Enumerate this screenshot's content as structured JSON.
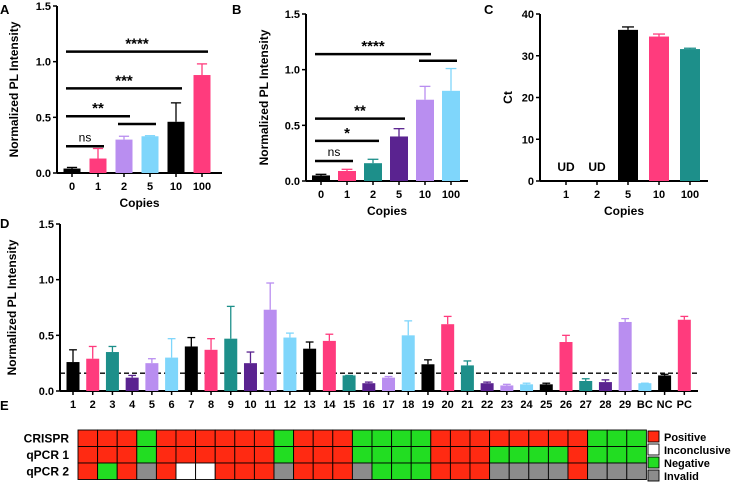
{
  "colors": {
    "black": "#000000",
    "pink": "#ff3b7d",
    "purple": "#b98ef0",
    "lightblue": "#7fd6fb",
    "teal": "#1d8f8a",
    "darkpurple": "#5a2390",
    "positive": "#ff2a12",
    "negative": "#22dd22",
    "inconclusive": "#ffffff",
    "invalid": "#8c8c8c"
  },
  "chart_data": [
    {
      "panel": "A",
      "type": "bar",
      "title": "",
      "xlabel": "Copies",
      "ylabel": "Normalized PL Intensity",
      "ylim": [
        0,
        1.5
      ],
      "yticks": [
        "0.0",
        "0.5",
        "1.0",
        "1.5"
      ],
      "categories": [
        "0",
        "1",
        "2",
        "5",
        "10",
        "100"
      ],
      "values": [
        0.04,
        0.13,
        0.3,
        0.33,
        0.46,
        0.88
      ],
      "errors": [
        0.01,
        0.09,
        0.03,
        0.005,
        0.17,
        0.1
      ],
      "colors": [
        "black",
        "pink",
        "purple",
        "lightblue",
        "black",
        "pink"
      ],
      "annotations": [
        {
          "from": 0,
          "to": 1,
          "y": 0.24,
          "text": "ns",
          "style": "sigs"
        },
        {
          "from": 0,
          "to": 2,
          "y": 0.51,
          "text": "**",
          "style": "sig"
        },
        {
          "from": 2,
          "to": 3,
          "y": 0.44,
          "text": "",
          "style": "sig"
        },
        {
          "from": 0,
          "to": 4,
          "y": 0.76,
          "text": "***",
          "style": "sig"
        },
        {
          "from": 0,
          "to": 5,
          "y": 1.09,
          "text": "****",
          "style": "sig"
        }
      ]
    },
    {
      "panel": "B",
      "type": "bar",
      "title": "",
      "xlabel": "Copies",
      "ylabel": "Normalized PL Intensity",
      "ylim": [
        0,
        1.5
      ],
      "yticks": [
        "0.0",
        "0.5",
        "1.0",
        "1.5"
      ],
      "categories": [
        "0",
        "1",
        "2",
        "5",
        "10",
        "100"
      ],
      "values": [
        0.05,
        0.09,
        0.16,
        0.4,
        0.73,
        0.81
      ],
      "errors": [
        0.01,
        0.015,
        0.035,
        0.07,
        0.12,
        0.2
      ],
      "colors": [
        "black",
        "pink",
        "teal",
        "darkpurple",
        "purple",
        "lightblue"
      ],
      "annotations": [
        {
          "from": 0,
          "to": 1,
          "y": 0.18,
          "text": "ns",
          "style": "sigs"
        },
        {
          "from": 0,
          "to": 2,
          "y": 0.36,
          "text": "*",
          "style": "sig"
        },
        {
          "from": 0,
          "to": 3,
          "y": 0.56,
          "text": "**",
          "style": "sig"
        },
        {
          "from": 4,
          "to": 5,
          "y": 1.08,
          "text": "",
          "style": "sig"
        },
        {
          "from": 0,
          "to": 4,
          "y": 1.14,
          "text": "****",
          "style": "sig"
        }
      ]
    },
    {
      "panel": "C",
      "type": "bar",
      "title": "",
      "xlabel": "Copies",
      "ylabel": "Ct",
      "ylim": [
        0,
        40
      ],
      "yticks": [
        "0",
        "10",
        "20",
        "30",
        "40"
      ],
      "categories": [
        "1",
        "2",
        "5",
        "10",
        "100"
      ],
      "values": [
        0,
        0,
        36.2,
        34.6,
        31.6
      ],
      "errors": [
        0,
        0,
        0.7,
        0.6,
        0.2
      ],
      "colors": [
        "black",
        "black",
        "black",
        "pink",
        "teal"
      ],
      "labels": [
        "UD",
        "UD",
        "",
        "",
        ""
      ]
    },
    {
      "panel": "D",
      "type": "bar",
      "title": "",
      "xlabel": "",
      "ylabel": "Normalized PL Intensity",
      "ylim": [
        0,
        1.5
      ],
      "yticks": [
        "0.0",
        "0.5",
        "1.0",
        "1.5"
      ],
      "threshold": 0.16,
      "categories": [
        "1",
        "2",
        "3",
        "4",
        "5",
        "6",
        "7",
        "8",
        "9",
        "10",
        "11",
        "12",
        "13",
        "14",
        "15",
        "16",
        "17",
        "18",
        "19",
        "20",
        "21",
        "22",
        "23",
        "24",
        "25",
        "26",
        "27",
        "28",
        "29",
        "BC",
        "NC",
        "PC"
      ],
      "values": [
        0.26,
        0.29,
        0.35,
        0.12,
        0.25,
        0.3,
        0.4,
        0.37,
        0.47,
        0.25,
        0.73,
        0.48,
        0.38,
        0.45,
        0.14,
        0.07,
        0.12,
        0.5,
        0.24,
        0.6,
        0.23,
        0.07,
        0.05,
        0.06,
        0.06,
        0.44,
        0.09,
        0.08,
        0.62,
        0.07,
        0.14,
        0.64
      ],
      "errors": [
        0.11,
        0.11,
        0.05,
        0.02,
        0.04,
        0.17,
        0.08,
        0.1,
        0.29,
        0.1,
        0.24,
        0.04,
        0.06,
        0.06,
        0.0,
        0.01,
        0.01,
        0.13,
        0.04,
        0.07,
        0.04,
        0.01,
        0.01,
        0.01,
        0.01,
        0.06,
        0.02,
        0.02,
        0.03,
        0.0,
        0.01,
        0.03
      ],
      "colors": [
        "black",
        "pink",
        "teal",
        "darkpurple",
        "purple",
        "lightblue",
        "black",
        "pink",
        "teal",
        "darkpurple",
        "purple",
        "lightblue",
        "black",
        "pink",
        "teal",
        "darkpurple",
        "purple",
        "lightblue",
        "black",
        "pink",
        "teal",
        "darkpurple",
        "purple",
        "lightblue",
        "black",
        "pink",
        "teal",
        "darkpurple",
        "purple",
        "lightblue",
        "black",
        "pink"
      ]
    },
    {
      "panel": "E",
      "type": "table",
      "title": "",
      "rows": [
        {
          "name": "CRISPR",
          "cells": [
            "P",
            "P",
            "P",
            "N",
            "P",
            "P",
            "P",
            "P",
            "P",
            "P",
            "N",
            "P",
            "P",
            "P",
            "N",
            "N",
            "N",
            "N",
            "P",
            "P",
            "P",
            "P",
            "P",
            "P",
            "P",
            "P",
            "N",
            "N",
            "N"
          ]
        },
        {
          "name": "qPCR 1",
          "cells": [
            "P",
            "P",
            "P",
            "N",
            "P",
            "P",
            "P",
            "P",
            "P",
            "P",
            "N",
            "P",
            "P",
            "P",
            "N",
            "N",
            "N",
            "N",
            "P",
            "P",
            "P",
            "N",
            "N",
            "N",
            "N",
            "P",
            "N",
            "N",
            "N"
          ]
        },
        {
          "name": "qPCR 2",
          "cells": [
            "P",
            "N",
            "P",
            "I",
            "P",
            "U",
            "U",
            "P",
            "P",
            "P",
            "I",
            "P",
            "P",
            "P",
            "I",
            "N",
            "N",
            "N",
            "P",
            "P",
            "P",
            "I",
            "I",
            "I",
            "I",
            "P",
            "I",
            "I",
            "I"
          ]
        }
      ],
      "legend": [
        {
          "code": "P",
          "label": "Positive"
        },
        {
          "code": "U",
          "label": "Inconclusive"
        },
        {
          "code": "N",
          "label": "Negative"
        },
        {
          "code": "I",
          "label": "Invalid"
        }
      ]
    }
  ]
}
